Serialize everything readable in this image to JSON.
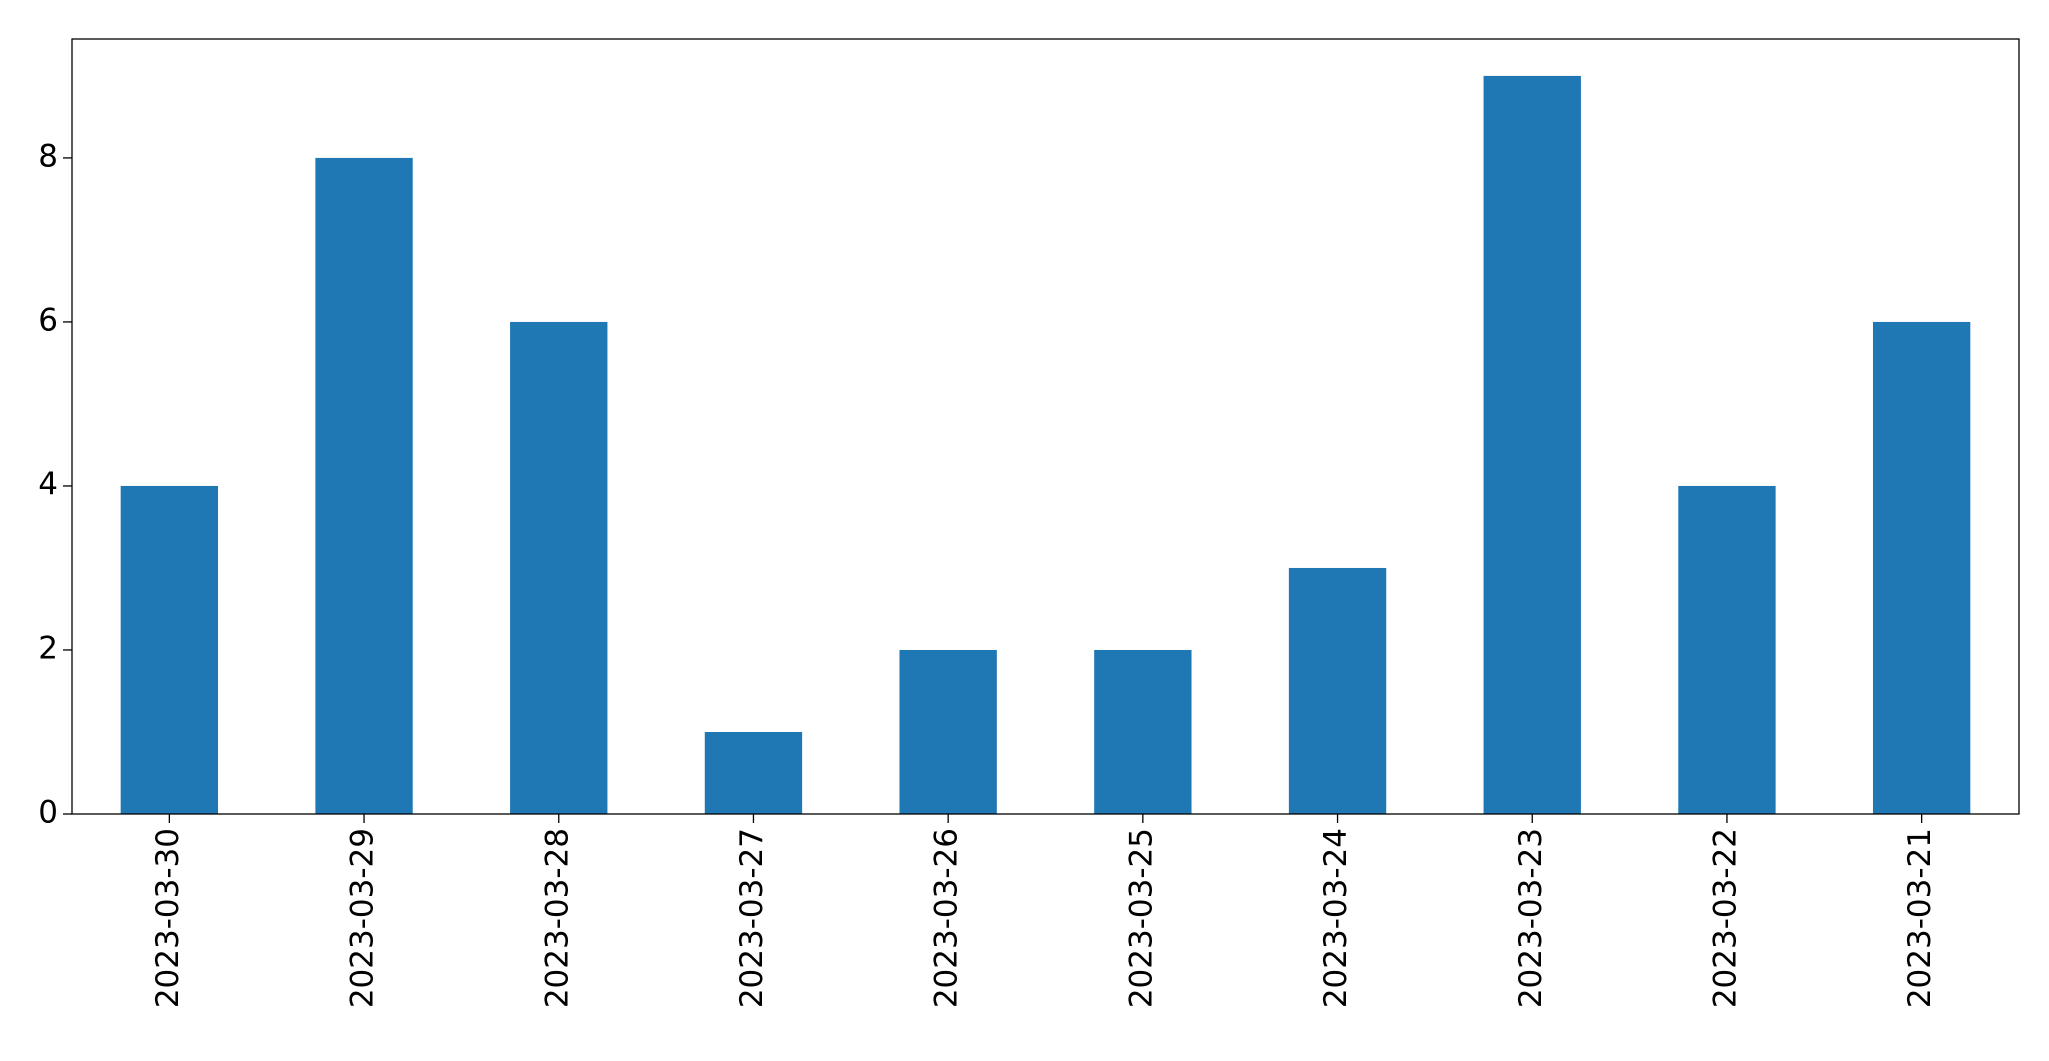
{
  "chart_data": {
    "type": "bar",
    "categories": [
      "2023-03-30",
      "2023-03-29",
      "2023-03-28",
      "2023-03-27",
      "2023-03-26",
      "2023-03-25",
      "2023-03-24",
      "2023-03-23",
      "2023-03-22",
      "2023-03-21"
    ],
    "values": [
      4,
      8,
      6,
      1,
      2,
      2,
      3,
      9,
      4,
      6
    ],
    "color": "#1f77b4",
    "ylim": [
      0,
      9.45
    ],
    "yticks": [
      0,
      2,
      4,
      6,
      8
    ],
    "grid": false
  }
}
